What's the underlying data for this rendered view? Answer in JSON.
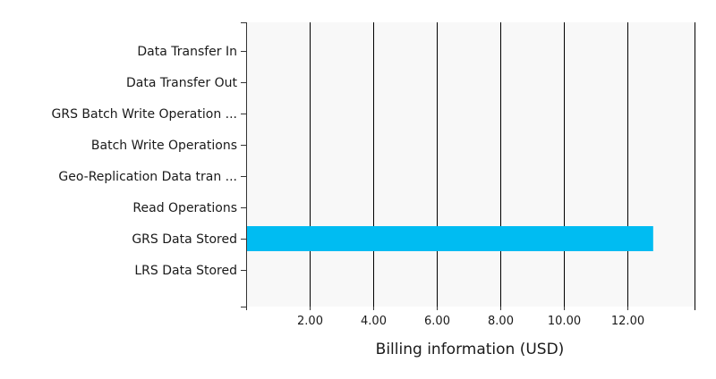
{
  "chart_data": {
    "type": "bar",
    "orientation": "horizontal",
    "categories": [
      "Data Transfer In",
      "Data Transfer Out",
      "GRS Batch Write Operation ...",
      "Batch Write Operations",
      "Geo-Replication Data tran ...",
      "Read Operations",
      "GRS Data Stored",
      "LRS Data Stored"
    ],
    "values": [
      0,
      0,
      0,
      0,
      0,
      0,
      12.8,
      0
    ],
    "xlabel": "Billing information (USD)",
    "ylabel": "",
    "xlim": [
      0,
      14.1
    ],
    "xticks": [
      2,
      4,
      6,
      8,
      10,
      12
    ],
    "xtick_labels": [
      "2.00",
      "4.00",
      "6.00",
      "8.00",
      "10.00",
      "12.00"
    ],
    "grid": true,
    "colors": {
      "bar": "#00bcf2",
      "plot_background": "#f8f8f8",
      "grid": "#000000",
      "axis": "#333333"
    }
  }
}
